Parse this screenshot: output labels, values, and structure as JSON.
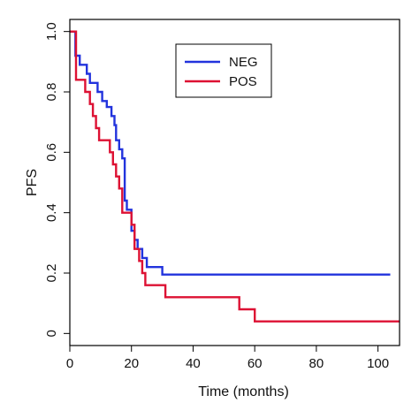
{
  "chart_data": {
    "type": "line",
    "xlabel": "Time (months)",
    "ylabel": "PFS",
    "xlim": [
      0,
      107
    ],
    "ylim": [
      -0.04,
      1.04
    ],
    "xticks": [
      0,
      20,
      40,
      60,
      80,
      100
    ],
    "yticks": [
      0,
      0.2,
      0.4,
      0.6,
      0.8,
      1.0
    ],
    "yticklabels": [
      "0",
      "0.2",
      "0.4",
      "0.6",
      "0.8",
      "1.0"
    ],
    "grid": false,
    "legend_position": "top-center",
    "series": [
      {
        "name": "NEG",
        "color": "#2233dd",
        "step": true,
        "points": [
          [
            0,
            1.0
          ],
          [
            1.8,
            1.0
          ],
          [
            1.8,
            0.92
          ],
          [
            3.2,
            0.92
          ],
          [
            3.2,
            0.89
          ],
          [
            5.5,
            0.89
          ],
          [
            5.5,
            0.86
          ],
          [
            6.5,
            0.86
          ],
          [
            6.5,
            0.83
          ],
          [
            9.0,
            0.83
          ],
          [
            9.0,
            0.8
          ],
          [
            10.5,
            0.8
          ],
          [
            10.5,
            0.77
          ],
          [
            12.0,
            0.77
          ],
          [
            12.0,
            0.75
          ],
          [
            13.5,
            0.75
          ],
          [
            13.5,
            0.72
          ],
          [
            14.5,
            0.72
          ],
          [
            14.5,
            0.69
          ],
          [
            15.0,
            0.69
          ],
          [
            15.0,
            0.64
          ],
          [
            16.0,
            0.64
          ],
          [
            16.0,
            0.61
          ],
          [
            17.0,
            0.61
          ],
          [
            17.0,
            0.58
          ],
          [
            17.8,
            0.58
          ],
          [
            17.8,
            0.44
          ],
          [
            18.5,
            0.44
          ],
          [
            18.5,
            0.41
          ],
          [
            20.0,
            0.41
          ],
          [
            20.0,
            0.34
          ],
          [
            21.0,
            0.34
          ],
          [
            21.0,
            0.31
          ],
          [
            22.0,
            0.31
          ],
          [
            22.0,
            0.28
          ],
          [
            23.5,
            0.28
          ],
          [
            23.5,
            0.25
          ],
          [
            25.0,
            0.25
          ],
          [
            25.0,
            0.22
          ],
          [
            30.0,
            0.22
          ],
          [
            30.0,
            0.195
          ],
          [
            104.0,
            0.195
          ]
        ]
      },
      {
        "name": "POS",
        "color": "#dd1133",
        "step": true,
        "points": [
          [
            0,
            1.0
          ],
          [
            2.0,
            1.0
          ],
          [
            2.0,
            0.84
          ],
          [
            5.0,
            0.84
          ],
          [
            5.0,
            0.8
          ],
          [
            6.5,
            0.8
          ],
          [
            6.5,
            0.76
          ],
          [
            7.5,
            0.76
          ],
          [
            7.5,
            0.72
          ],
          [
            8.5,
            0.72
          ],
          [
            8.5,
            0.68
          ],
          [
            9.5,
            0.68
          ],
          [
            9.5,
            0.64
          ],
          [
            13.0,
            0.64
          ],
          [
            13.0,
            0.6
          ],
          [
            14.0,
            0.6
          ],
          [
            14.0,
            0.56
          ],
          [
            15.0,
            0.56
          ],
          [
            15.0,
            0.52
          ],
          [
            16.0,
            0.52
          ],
          [
            16.0,
            0.48
          ],
          [
            17.0,
            0.48
          ],
          [
            17.0,
            0.4
          ],
          [
            20.0,
            0.4
          ],
          [
            20.0,
            0.36
          ],
          [
            21.0,
            0.36
          ],
          [
            21.0,
            0.28
          ],
          [
            22.5,
            0.28
          ],
          [
            22.5,
            0.24
          ],
          [
            23.5,
            0.24
          ],
          [
            23.5,
            0.2
          ],
          [
            24.5,
            0.2
          ],
          [
            24.5,
            0.16
          ],
          [
            31.0,
            0.16
          ],
          [
            31.0,
            0.12
          ],
          [
            55.0,
            0.12
          ],
          [
            55.0,
            0.08
          ],
          [
            60.0,
            0.08
          ],
          [
            60.0,
            0.04
          ],
          [
            107.0,
            0.04
          ]
        ]
      }
    ]
  }
}
